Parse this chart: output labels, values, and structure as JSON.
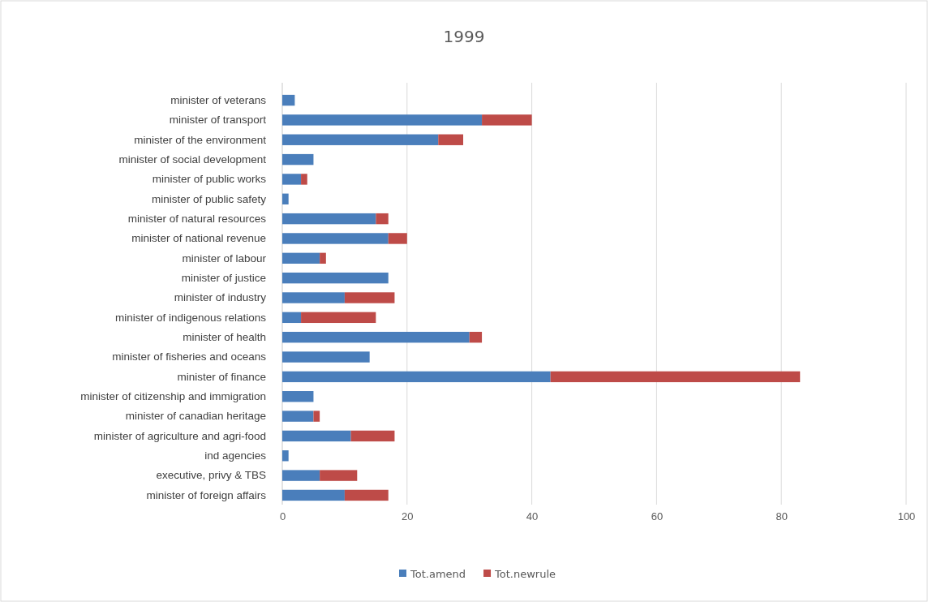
{
  "chart_data": {
    "type": "bar",
    "orientation": "horizontal",
    "stacked": true,
    "title": "1999",
    "categories": [
      "minister of veterans",
      "minister of transport",
      "minister of the environment",
      "minister of social development",
      "minister of public works",
      "minister of public safety",
      "minister of natural resources",
      "minister of national revenue",
      "minister of labour",
      "minister of justice",
      "minister of industry",
      "minister of indigenous relations",
      "minister of health",
      "minister of fisheries and oceans",
      "minister of finance",
      "minister of citizenship and immigration",
      "minister of canadian heritage",
      "minister of agriculture and agri-food",
      "ind agencies",
      "executive, privy & TBS",
      "minister of foreign affairs"
    ],
    "series": [
      {
        "name": "Tot.amend",
        "color": "#4a7ebb",
        "values": [
          2,
          32,
          25,
          5,
          3,
          1,
          15,
          17,
          6,
          17,
          10,
          3,
          30,
          14,
          43,
          5,
          5,
          11,
          1,
          6,
          10
        ]
      },
      {
        "name": "Tot.newrule",
        "color": "#be4b48",
        "values": [
          0,
          8,
          4,
          0,
          1,
          0,
          2,
          3,
          1,
          0,
          8,
          12,
          2,
          0,
          40,
          0,
          1,
          7,
          0,
          6,
          7
        ]
      }
    ],
    "xlim": [
      0,
      100
    ],
    "xticks": [
      0,
      20,
      40,
      60,
      80,
      100
    ],
    "grid": "x",
    "legend": "bottom"
  }
}
